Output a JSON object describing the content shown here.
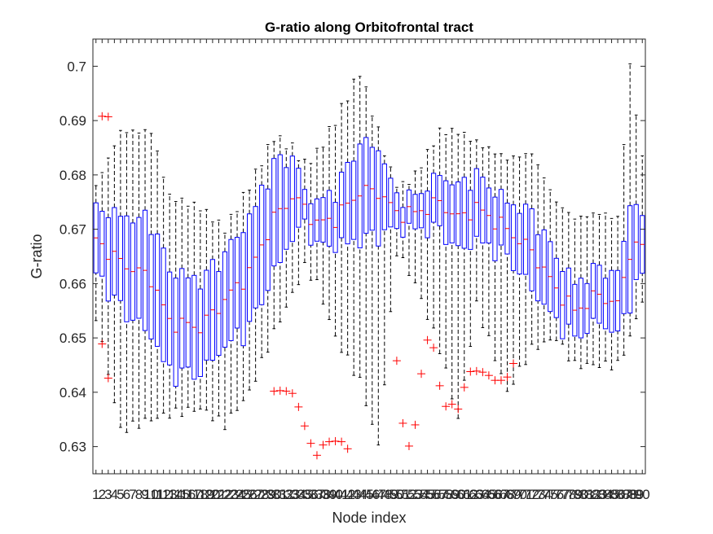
{
  "chart_data": {
    "type": "boxplot",
    "title": "G-ratio along Orbitofrontal tract",
    "xlabel": "Node index",
    "ylabel": "G-ratio",
    "ylim": [
      0.625,
      0.705
    ],
    "yticks": [
      0.63,
      0.64,
      0.65,
      0.66,
      0.67,
      0.68,
      0.69,
      0.7
    ],
    "ytick_labels": [
      "0.63",
      "0.64",
      "0.65",
      "0.66",
      "0.67",
      "0.68",
      "0.69",
      "0.7"
    ],
    "xlim": [
      0.5,
      90.5
    ],
    "grid": false,
    "colors": {
      "box": "#0000ff",
      "median": "#ff0000",
      "whisker": "#000000",
      "outlier": "#ff0000",
      "axis": "#262626"
    },
    "median_anchors": {
      "x": [
        1,
        5,
        10,
        13,
        18,
        22,
        26,
        30,
        33,
        35,
        37,
        40,
        44,
        47,
        50,
        53,
        57,
        60,
        63,
        68,
        72,
        76,
        79,
        83,
        86,
        88,
        90
      ],
      "med": [
        0.668,
        0.664,
        0.661,
        0.653,
        0.652,
        0.657,
        0.662,
        0.672,
        0.676,
        0.674,
        0.671,
        0.672,
        0.677,
        0.677,
        0.673,
        0.673,
        0.675,
        0.672,
        0.674,
        0.67,
        0.666,
        0.659,
        0.655,
        0.658,
        0.656,
        0.666,
        0.667
      ]
    },
    "spread_anchors": {
      "x": [
        1,
        5,
        10,
        13,
        18,
        22,
        26,
        30,
        33,
        35,
        37,
        40,
        44,
        47,
        50,
        53,
        57,
        60,
        63,
        68,
        72,
        76,
        79,
        83,
        86,
        88,
        90
      ],
      "iqr": [
        0.012,
        0.017,
        0.021,
        0.019,
        0.017,
        0.017,
        0.02,
        0.02,
        0.015,
        0.006,
        0.008,
        0.01,
        0.018,
        0.016,
        0.006,
        0.006,
        0.01,
        0.012,
        0.012,
        0.01,
        0.014,
        0.012,
        0.01,
        0.01,
        0.011,
        0.018,
        0.011
      ],
      "upper": [
        0.678,
        0.688,
        0.688,
        0.676,
        0.674,
        0.67,
        0.678,
        0.687,
        0.685,
        0.682,
        0.684,
        0.69,
        0.699,
        0.688,
        0.677,
        0.68,
        0.688,
        0.688,
        0.686,
        0.683,
        0.684,
        0.675,
        0.672,
        0.673,
        0.672,
        0.7,
        0.683
      ],
      "lower": [
        0.654,
        0.633,
        0.635,
        0.636,
        0.637,
        0.634,
        0.64,
        0.651,
        0.658,
        0.663,
        0.66,
        0.65,
        0.642,
        0.63,
        0.666,
        0.66,
        0.648,
        0.635,
        0.656,
        0.64,
        0.648,
        0.65,
        0.645,
        0.645,
        0.645,
        0.65,
        0.657
      ]
    },
    "outliers": [
      {
        "x": 2,
        "y": 0.6489
      },
      {
        "x": 2,
        "y": 0.6908
      },
      {
        "x": 3,
        "y": 0.6907
      },
      {
        "x": 3,
        "y": 0.6426
      },
      {
        "x": 30,
        "y": 0.6402
      },
      {
        "x": 31,
        "y": 0.6403
      },
      {
        "x": 32,
        "y": 0.6402
      },
      {
        "x": 33,
        "y": 0.6398
      },
      {
        "x": 34,
        "y": 0.6373
      },
      {
        "x": 35,
        "y": 0.6338
      },
      {
        "x": 36,
        "y": 0.6306
      },
      {
        "x": 37,
        "y": 0.6284
      },
      {
        "x": 38,
        "y": 0.6303
      },
      {
        "x": 39,
        "y": 0.6309
      },
      {
        "x": 40,
        "y": 0.631
      },
      {
        "x": 41,
        "y": 0.6309
      },
      {
        "x": 42,
        "y": 0.6296
      },
      {
        "x": 50,
        "y": 0.6458
      },
      {
        "x": 51,
        "y": 0.6343
      },
      {
        "x": 52,
        "y": 0.6301
      },
      {
        "x": 53,
        "y": 0.634
      },
      {
        "x": 54,
        "y": 0.6434
      },
      {
        "x": 55,
        "y": 0.6496
      },
      {
        "x": 56,
        "y": 0.6482
      },
      {
        "x": 57,
        "y": 0.6412
      },
      {
        "x": 58,
        "y": 0.6374
      },
      {
        "x": 59,
        "y": 0.6378
      },
      {
        "x": 60,
        "y": 0.6369
      },
      {
        "x": 61,
        "y": 0.6409
      },
      {
        "x": 62,
        "y": 0.6438
      },
      {
        "x": 63,
        "y": 0.6439
      },
      {
        "x": 64,
        "y": 0.6437
      },
      {
        "x": 65,
        "y": 0.6431
      },
      {
        "x": 66,
        "y": 0.6422
      },
      {
        "x": 67,
        "y": 0.6422
      },
      {
        "x": 68,
        "y": 0.6428
      },
      {
        "x": 69,
        "y": 0.6453
      }
    ]
  }
}
